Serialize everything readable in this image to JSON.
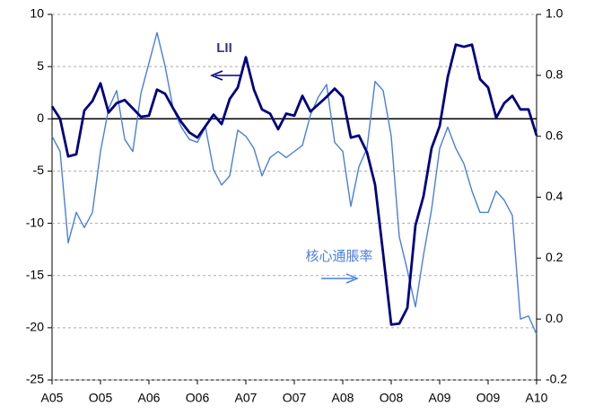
{
  "chart_data": {
    "type": "line",
    "categories": [
      "A05",
      null,
      null,
      null,
      null,
      null,
      "O05",
      null,
      null,
      null,
      null,
      null,
      "A06",
      null,
      null,
      null,
      null,
      null,
      "O06",
      null,
      null,
      null,
      null,
      null,
      "A07",
      null,
      null,
      null,
      null,
      null,
      "O07",
      null,
      null,
      null,
      null,
      null,
      "A08",
      null,
      null,
      null,
      null,
      null,
      "O08",
      null,
      null,
      null,
      null,
      null,
      "A09",
      null,
      null,
      null,
      null,
      null,
      "O09",
      null,
      null,
      null,
      null,
      null,
      "A10"
    ],
    "series": [
      {
        "name": "LII",
        "color": "#000080",
        "axis": "y",
        "values": [
          1.2,
          0,
          -3.6,
          -3.4,
          0.8,
          1.7,
          3.4,
          0.6,
          1.5,
          1.8,
          1.0,
          0.2,
          0.3,
          2.8,
          2.4,
          1.0,
          -0.3,
          -1.3,
          -1.8,
          -0.7,
          0.4,
          -0.5,
          1.9,
          3.0,
          5.9,
          2.8,
          0.9,
          0.5,
          -1.0,
          0.5,
          0.3,
          2.2,
          0.7,
          1.4,
          2.1,
          2.9,
          2.1,
          -1.8,
          -1.6,
          -3.2,
          -6.3,
          -12.9,
          -19.7,
          -19.6,
          -18.1,
          -10.2,
          -7.4,
          -2.8,
          -0.7,
          4.0,
          7.1,
          6.9,
          7.1,
          3.8,
          3.0,
          0.1,
          1.5,
          2.2,
          0.9,
          0.9,
          -1.6
        ]
      },
      {
        "name": "核心通脹率",
        "color": "#4a7ee0",
        "axis": "y2",
        "values": [
          0.6,
          0.55,
          0.25,
          0.35,
          0.3,
          0.35,
          0.55,
          0.69,
          0.75,
          0.59,
          0.55,
          0.74,
          0.84,
          0.94,
          0.83,
          0.69,
          0.63,
          0.59,
          0.58,
          0.63,
          0.49,
          0.44,
          0.47,
          0.62,
          0.6,
          0.56,
          0.47,
          0.53,
          0.55,
          0.53,
          0.55,
          0.57,
          0.67,
          0.73,
          0.77,
          0.58,
          0.55,
          0.37,
          0.5,
          0.56,
          0.78,
          0.75,
          0.6,
          0.27,
          0.16,
          0.04,
          0.21,
          0.36,
          0.56,
          0.63,
          0.56,
          0.51,
          0.42,
          0.35,
          0.35,
          0.42,
          0.39,
          0.34,
          0.0,
          0.01,
          -0.05
        ]
      }
    ],
    "ylim": [
      -25,
      10
    ],
    "yticks": [
      10,
      5,
      0,
      -5,
      -10,
      -15,
      -20,
      -25
    ],
    "y2lim": [
      -0.2,
      1.0
    ],
    "y2ticks": [
      {
        "value": 1.0,
        "label": "1.0"
      },
      0.8,
      0.6,
      0.4,
      0.2,
      {
        "value": 0,
        "label": "0.0"
      },
      -0.2
    ],
    "grid": true
  }
}
